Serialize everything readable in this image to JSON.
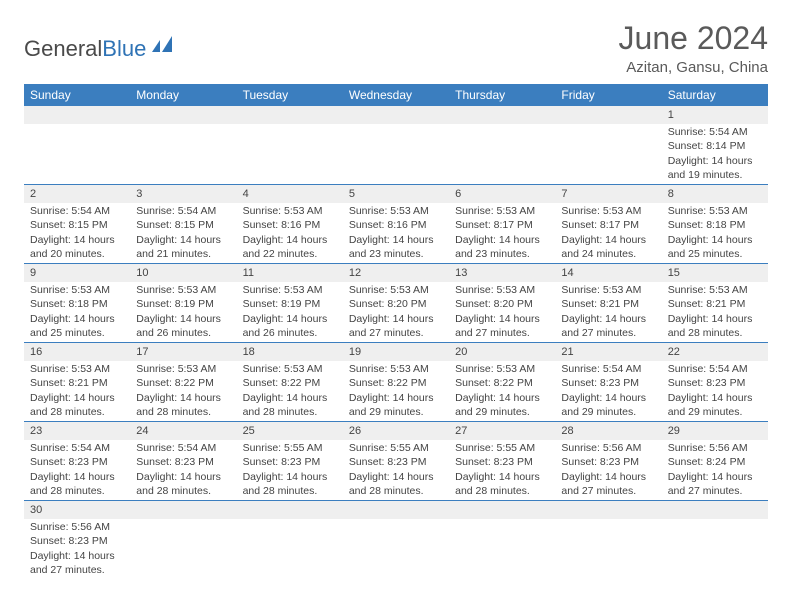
{
  "logo": {
    "general": "General",
    "blue": "Blue"
  },
  "title": "June 2024",
  "subtitle": "Azitan, Gansu, China",
  "colors": {
    "header_bg": "#3b7ebf",
    "header_fg": "#ffffff",
    "daynum_bg": "#efefef",
    "text": "#444444",
    "row_border": "#3b7ebf",
    "logo_gray": "#4a4a4a",
    "logo_blue": "#2f73b5",
    "title_color": "#5a5a5a"
  },
  "weekdays": [
    "Sunday",
    "Monday",
    "Tuesday",
    "Wednesday",
    "Thursday",
    "Friday",
    "Saturday"
  ],
  "weeks": [
    [
      null,
      null,
      null,
      null,
      null,
      null,
      {
        "n": "1",
        "sr": "Sunrise: 5:54 AM",
        "ss": "Sunset: 8:14 PM",
        "d1": "Daylight: 14 hours",
        "d2": "and 19 minutes."
      }
    ],
    [
      {
        "n": "2",
        "sr": "Sunrise: 5:54 AM",
        "ss": "Sunset: 8:15 PM",
        "d1": "Daylight: 14 hours",
        "d2": "and 20 minutes."
      },
      {
        "n": "3",
        "sr": "Sunrise: 5:54 AM",
        "ss": "Sunset: 8:15 PM",
        "d1": "Daylight: 14 hours",
        "d2": "and 21 minutes."
      },
      {
        "n": "4",
        "sr": "Sunrise: 5:53 AM",
        "ss": "Sunset: 8:16 PM",
        "d1": "Daylight: 14 hours",
        "d2": "and 22 minutes."
      },
      {
        "n": "5",
        "sr": "Sunrise: 5:53 AM",
        "ss": "Sunset: 8:16 PM",
        "d1": "Daylight: 14 hours",
        "d2": "and 23 minutes."
      },
      {
        "n": "6",
        "sr": "Sunrise: 5:53 AM",
        "ss": "Sunset: 8:17 PM",
        "d1": "Daylight: 14 hours",
        "d2": "and 23 minutes."
      },
      {
        "n": "7",
        "sr": "Sunrise: 5:53 AM",
        "ss": "Sunset: 8:17 PM",
        "d1": "Daylight: 14 hours",
        "d2": "and 24 minutes."
      },
      {
        "n": "8",
        "sr": "Sunrise: 5:53 AM",
        "ss": "Sunset: 8:18 PM",
        "d1": "Daylight: 14 hours",
        "d2": "and 25 minutes."
      }
    ],
    [
      {
        "n": "9",
        "sr": "Sunrise: 5:53 AM",
        "ss": "Sunset: 8:18 PM",
        "d1": "Daylight: 14 hours",
        "d2": "and 25 minutes."
      },
      {
        "n": "10",
        "sr": "Sunrise: 5:53 AM",
        "ss": "Sunset: 8:19 PM",
        "d1": "Daylight: 14 hours",
        "d2": "and 26 minutes."
      },
      {
        "n": "11",
        "sr": "Sunrise: 5:53 AM",
        "ss": "Sunset: 8:19 PM",
        "d1": "Daylight: 14 hours",
        "d2": "and 26 minutes."
      },
      {
        "n": "12",
        "sr": "Sunrise: 5:53 AM",
        "ss": "Sunset: 8:20 PM",
        "d1": "Daylight: 14 hours",
        "d2": "and 27 minutes."
      },
      {
        "n": "13",
        "sr": "Sunrise: 5:53 AM",
        "ss": "Sunset: 8:20 PM",
        "d1": "Daylight: 14 hours",
        "d2": "and 27 minutes."
      },
      {
        "n": "14",
        "sr": "Sunrise: 5:53 AM",
        "ss": "Sunset: 8:21 PM",
        "d1": "Daylight: 14 hours",
        "d2": "and 27 minutes."
      },
      {
        "n": "15",
        "sr": "Sunrise: 5:53 AM",
        "ss": "Sunset: 8:21 PM",
        "d1": "Daylight: 14 hours",
        "d2": "and 28 minutes."
      }
    ],
    [
      {
        "n": "16",
        "sr": "Sunrise: 5:53 AM",
        "ss": "Sunset: 8:21 PM",
        "d1": "Daylight: 14 hours",
        "d2": "and 28 minutes."
      },
      {
        "n": "17",
        "sr": "Sunrise: 5:53 AM",
        "ss": "Sunset: 8:22 PM",
        "d1": "Daylight: 14 hours",
        "d2": "and 28 minutes."
      },
      {
        "n": "18",
        "sr": "Sunrise: 5:53 AM",
        "ss": "Sunset: 8:22 PM",
        "d1": "Daylight: 14 hours",
        "d2": "and 28 minutes."
      },
      {
        "n": "19",
        "sr": "Sunrise: 5:53 AM",
        "ss": "Sunset: 8:22 PM",
        "d1": "Daylight: 14 hours",
        "d2": "and 29 minutes."
      },
      {
        "n": "20",
        "sr": "Sunrise: 5:53 AM",
        "ss": "Sunset: 8:22 PM",
        "d1": "Daylight: 14 hours",
        "d2": "and 29 minutes."
      },
      {
        "n": "21",
        "sr": "Sunrise: 5:54 AM",
        "ss": "Sunset: 8:23 PM",
        "d1": "Daylight: 14 hours",
        "d2": "and 29 minutes."
      },
      {
        "n": "22",
        "sr": "Sunrise: 5:54 AM",
        "ss": "Sunset: 8:23 PM",
        "d1": "Daylight: 14 hours",
        "d2": "and 29 minutes."
      }
    ],
    [
      {
        "n": "23",
        "sr": "Sunrise: 5:54 AM",
        "ss": "Sunset: 8:23 PM",
        "d1": "Daylight: 14 hours",
        "d2": "and 28 minutes."
      },
      {
        "n": "24",
        "sr": "Sunrise: 5:54 AM",
        "ss": "Sunset: 8:23 PM",
        "d1": "Daylight: 14 hours",
        "d2": "and 28 minutes."
      },
      {
        "n": "25",
        "sr": "Sunrise: 5:55 AM",
        "ss": "Sunset: 8:23 PM",
        "d1": "Daylight: 14 hours",
        "d2": "and 28 minutes."
      },
      {
        "n": "26",
        "sr": "Sunrise: 5:55 AM",
        "ss": "Sunset: 8:23 PM",
        "d1": "Daylight: 14 hours",
        "d2": "and 28 minutes."
      },
      {
        "n": "27",
        "sr": "Sunrise: 5:55 AM",
        "ss": "Sunset: 8:23 PM",
        "d1": "Daylight: 14 hours",
        "d2": "and 28 minutes."
      },
      {
        "n": "28",
        "sr": "Sunrise: 5:56 AM",
        "ss": "Sunset: 8:23 PM",
        "d1": "Daylight: 14 hours",
        "d2": "and 27 minutes."
      },
      {
        "n": "29",
        "sr": "Sunrise: 5:56 AM",
        "ss": "Sunset: 8:24 PM",
        "d1": "Daylight: 14 hours",
        "d2": "and 27 minutes."
      }
    ],
    [
      {
        "n": "30",
        "sr": "Sunrise: 5:56 AM",
        "ss": "Sunset: 8:23 PM",
        "d1": "Daylight: 14 hours",
        "d2": "and 27 minutes."
      },
      null,
      null,
      null,
      null,
      null,
      null
    ]
  ]
}
